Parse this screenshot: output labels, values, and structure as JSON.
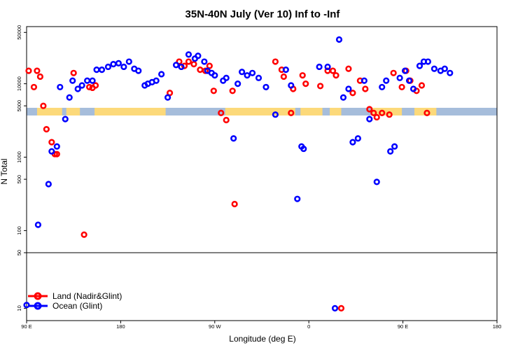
{
  "chart_data": {
    "type": "scatter",
    "title": "35N-40N July (Ver 10)   Inf to -Inf",
    "xlabel": "Longitude (deg E)",
    "ylabel": "N Total",
    "x_tick_labels": [
      {
        "lon": 90,
        "label": "90 E"
      },
      {
        "lon": 180,
        "label": "180"
      },
      {
        "lon": 270,
        "label": "90 W"
      },
      {
        "lon": 360,
        "label": "0"
      },
      {
        "lon": 450,
        "label": "90 E"
      },
      {
        "lon": 540,
        "label": "180"
      }
    ],
    "xlim": [
      90,
      540
    ],
    "upper_panel": {
      "yscale": "log",
      "ylim": [
        50,
        60000
      ],
      "ticks": [
        50,
        100,
        500,
        1000,
        5000,
        10000,
        50000
      ],
      "tick_labels": [
        "50",
        "100",
        "500",
        "1000",
        "5000",
        "10000",
        "50000"
      ]
    },
    "lower_panel": {
      "yscale": "log",
      "ylim": [
        7,
        50
      ],
      "ticks": [
        10
      ],
      "tick_labels": [
        "10"
      ]
    },
    "map_strip": {
      "land_color": "#fcd97a",
      "ocean_color": "#a6bddb",
      "land_ranges": [
        [
          100,
          124
        ],
        [
          128,
          141
        ],
        [
          155,
          223
        ],
        [
          280,
          347
        ],
        [
          352,
          373
        ],
        [
          380,
          391
        ],
        [
          421,
          449
        ],
        [
          461,
          482
        ]
      ]
    },
    "series": [
      {
        "name": "Land (Nadir&Glint)",
        "color": "#ff0000",
        "points": [
          [
            92,
            15000
          ],
          [
            97,
            9000
          ],
          [
            100,
            15000
          ],
          [
            103,
            12500
          ],
          [
            106,
            5000
          ],
          [
            109,
            2400
          ],
          [
            114,
            1600
          ],
          [
            117,
            1100
          ],
          [
            119,
            1100
          ],
          [
            135,
            14000
          ],
          [
            145,
            88
          ],
          [
            150,
            9000
          ],
          [
            153,
            8800
          ],
          [
            156,
            9500
          ],
          [
            227,
            7500
          ],
          [
            236,
            20000
          ],
          [
            241,
            17500
          ],
          [
            245,
            20000
          ],
          [
            250,
            18500
          ],
          [
            256,
            15500
          ],
          [
            261,
            15000
          ],
          [
            265,
            17500
          ],
          [
            269,
            8000
          ],
          [
            276,
            4000
          ],
          [
            281,
            3200
          ],
          [
            287,
            8000
          ],
          [
            289,
            230
          ],
          [
            328,
            20000
          ],
          [
            334,
            15500
          ],
          [
            336,
            12500
          ],
          [
            343,
            4000
          ],
          [
            345,
            8500
          ],
          [
            354,
            13000
          ],
          [
            357,
            10000
          ],
          [
            371,
            9300
          ],
          [
            378,
            15000
          ],
          [
            383,
            15000
          ],
          [
            386,
            13000
          ],
          [
            391,
            10
          ],
          [
            398,
            16000
          ],
          [
            402,
            7500
          ],
          [
            409,
            11000
          ],
          [
            414,
            8500
          ],
          [
            418,
            4500
          ],
          [
            422,
            4000
          ],
          [
            425,
            3500
          ],
          [
            430,
            4000
          ],
          [
            437,
            3800
          ],
          [
            441,
            14000
          ],
          [
            449,
            9000
          ],
          [
            453,
            15000
          ],
          [
            457,
            11000
          ],
          [
            463,
            8000
          ],
          [
            468,
            9500
          ],
          [
            473,
            4000
          ]
        ]
      },
      {
        "name": "Ocean (Glint)",
        "color": "#0000ff",
        "points": [
          [
            90,
            11
          ],
          [
            101,
            120
          ],
          [
            111,
            430
          ],
          [
            114,
            1200
          ],
          [
            119,
            1400
          ],
          [
            122,
            9000
          ],
          [
            127,
            3300
          ],
          [
            131,
            6500
          ],
          [
            134,
            11000
          ],
          [
            139,
            8500
          ],
          [
            143,
            9500
          ],
          [
            148,
            11000
          ],
          [
            153,
            11000
          ],
          [
            157,
            15500
          ],
          [
            162,
            15500
          ],
          [
            168,
            17000
          ],
          [
            173,
            18500
          ],
          [
            178,
            19000
          ],
          [
            183,
            17000
          ],
          [
            188,
            20000
          ],
          [
            193,
            16000
          ],
          [
            197,
            15000
          ],
          [
            203,
            9500
          ],
          [
            206,
            10000
          ],
          [
            210,
            10500
          ],
          [
            214,
            11000
          ],
          [
            219,
            13500
          ],
          [
            225,
            6500
          ],
          [
            233,
            18000
          ],
          [
            238,
            17000
          ],
          [
            245,
            25000
          ],
          [
            251,
            22000
          ],
          [
            254,
            24000
          ],
          [
            260,
            20000
          ],
          [
            263,
            15000
          ],
          [
            267,
            14000
          ],
          [
            270,
            13000
          ],
          [
            278,
            11000
          ],
          [
            281,
            12000
          ],
          [
            288,
            1800
          ],
          [
            292,
            10000
          ],
          [
            296,
            14500
          ],
          [
            301,
            13000
          ],
          [
            306,
            14000
          ],
          [
            312,
            12000
          ],
          [
            319,
            9000
          ],
          [
            328,
            3800
          ],
          [
            338,
            15500
          ],
          [
            343,
            9500
          ],
          [
            349,
            270
          ],
          [
            353,
            1400
          ],
          [
            355,
            1300
          ],
          [
            370,
            17000
          ],
          [
            378,
            17000
          ],
          [
            385,
            10
          ],
          [
            389,
            40000
          ],
          [
            393,
            6500
          ],
          [
            398,
            8500
          ],
          [
            402,
            1600
          ],
          [
            407,
            1800
          ],
          [
            413,
            11000
          ],
          [
            418,
            3300
          ],
          [
            425,
            460
          ],
          [
            430,
            9000
          ],
          [
            434,
            11000
          ],
          [
            438,
            1200
          ],
          [
            442,
            1400
          ],
          [
            447,
            12000
          ],
          [
            452,
            15000
          ],
          [
            456,
            11000
          ],
          [
            460,
            8500
          ],
          [
            466,
            17500
          ],
          [
            470,
            20000
          ],
          [
            474,
            20000
          ],
          [
            480,
            16000
          ],
          [
            486,
            15000
          ],
          [
            490,
            16000
          ],
          [
            495,
            14000
          ]
        ]
      }
    ]
  }
}
